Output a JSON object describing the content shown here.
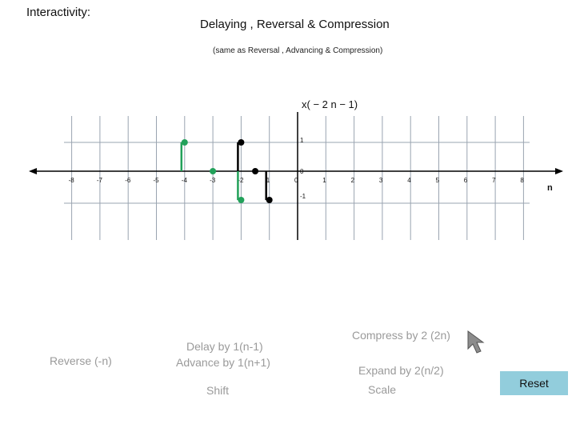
{
  "header": {
    "interactivity": "Interactivity:"
  },
  "title": "Delaying , Reversal & Compression",
  "subtitle": "(same as Reversal , Advancing & Compression)",
  "chart_data": {
    "type": "stem",
    "title": "x( − 2 n − 1)",
    "xlabel": "n",
    "xlim": [
      -9,
      9
    ],
    "ylim": [
      -1,
      1
    ],
    "x_ticks": [
      "-8",
      "-7",
      "-6",
      "-5",
      "-4",
      "-3",
      "-2",
      "1",
      "0",
      "1",
      "2",
      "3",
      "4",
      "5",
      "6",
      "7",
      "8"
    ],
    "y_ticks": {
      "pos": "1",
      "zero": "0",
      "neg": "-1"
    },
    "series": [
      {
        "color": "#22a15a",
        "points": [
          {
            "x": -4,
            "y": 1
          },
          {
            "x": -3,
            "y": 0
          },
          {
            "x": -2,
            "y": -1
          }
        ]
      },
      {
        "color": "#000000",
        "points": [
          {
            "x": -2,
            "y": 1
          },
          {
            "x": -1.5,
            "y": 0
          },
          {
            "x": -1,
            "y": -1
          }
        ]
      }
    ]
  },
  "controls": {
    "reverse": "Reverse (-n)",
    "delay": "Delay by 1(n-1)",
    "advance": "Advance by 1(n+1)",
    "shift": "Shift",
    "compress": "Compress by 2 (2n)",
    "expand": "Expand by 2(n/2)",
    "scale": "Scale",
    "reset": "Reset"
  },
  "cursor_icon": "arrow-cursor-icon"
}
